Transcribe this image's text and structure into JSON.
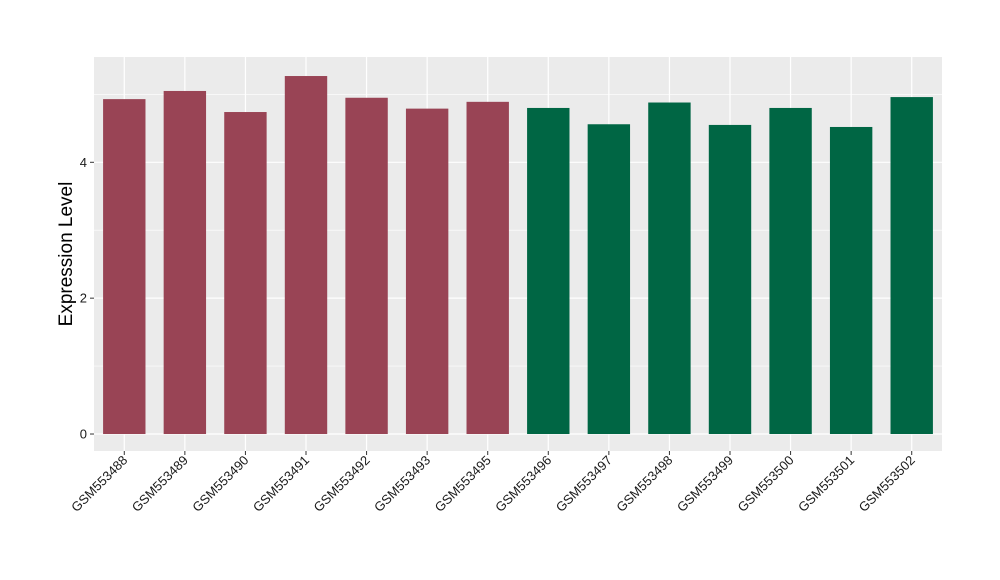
{
  "chart_data": {
    "type": "bar",
    "title": "",
    "xlabel": "",
    "ylabel": "Expression Level",
    "categories": [
      "GSM553488",
      "GSM553489",
      "GSM553490",
      "GSM553491",
      "GSM553492",
      "GSM553493",
      "GSM553495",
      "GSM553496",
      "GSM553497",
      "GSM553498",
      "GSM553499",
      "GSM553500",
      "GSM553501",
      "GSM553502"
    ],
    "values": [
      4.93,
      5.05,
      4.74,
      5.27,
      4.95,
      4.79,
      4.89,
      4.8,
      4.56,
      4.88,
      4.55,
      4.8,
      4.52,
      4.96
    ],
    "bar_colors": [
      "#994455",
      "#994455",
      "#994455",
      "#994455",
      "#994455",
      "#994455",
      "#994455",
      "#006644",
      "#006644",
      "#006644",
      "#006644",
      "#006644",
      "#006644",
      "#006644"
    ],
    "ylim": [
      -0.25,
      5.55
    ],
    "yticks": [
      0,
      2,
      4
    ],
    "grid": true,
    "panel_background": "#ebebeb",
    "gridline_color": "#ffffff"
  }
}
